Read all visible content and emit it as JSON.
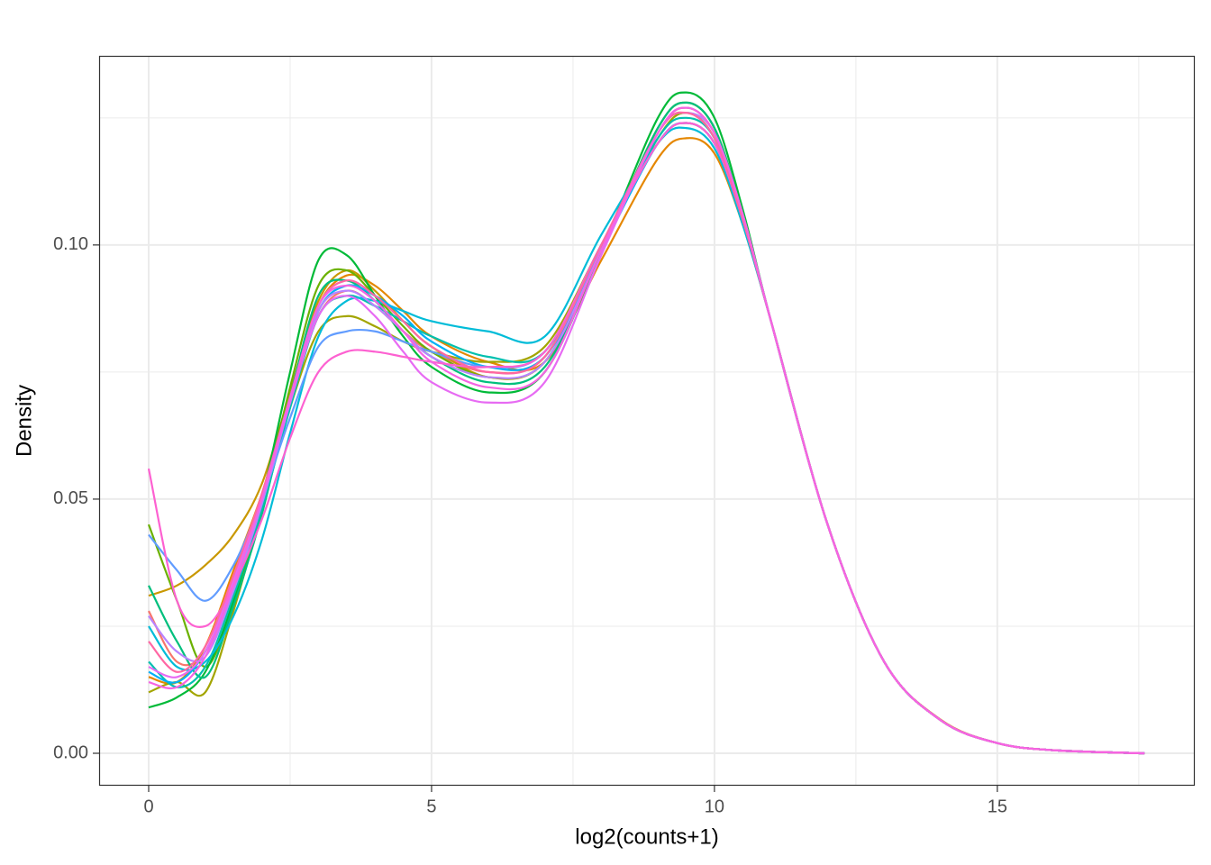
{
  "chart_data": {
    "type": "line",
    "x_label": "log2(counts+1)",
    "y_label": "Density",
    "x": [
      0,
      0.5,
      1,
      1.5,
      2,
      2.5,
      3,
      3.5,
      4,
      4.5,
      5,
      6,
      7,
      8,
      9,
      9.5,
      10,
      10.5,
      11,
      12,
      13,
      14,
      15,
      16,
      17.6
    ],
    "series": [
      {
        "color": "#F8766D",
        "values": [
          0.028,
          0.018,
          0.02,
          0.034,
          0.05,
          0.069,
          0.086,
          0.091,
          0.088,
          0.083,
          0.079,
          0.075,
          0.078,
          0.1,
          0.12,
          0.124,
          0.12,
          0.105,
          0.085,
          0.045,
          0.018,
          0.0065,
          0.002,
          0.0006,
          0
        ]
      },
      {
        "color": "#E58700",
        "values": [
          0.015,
          0.014,
          0.021,
          0.036,
          0.051,
          0.07,
          0.088,
          0.094,
          0.092,
          0.087,
          0.082,
          0.077,
          0.077,
          0.097,
          0.117,
          0.121,
          0.118,
          0.104,
          0.085,
          0.045,
          0.018,
          0.0066,
          0.002,
          0.0006,
          0
        ]
      },
      {
        "color": "#C99800",
        "values": [
          0.031,
          0.033,
          0.037,
          0.043,
          0.053,
          0.071,
          0.089,
          0.095,
          0.091,
          0.085,
          0.08,
          0.074,
          0.077,
          0.099,
          0.122,
          0.127,
          0.122,
          0.106,
          0.085,
          0.045,
          0.018,
          0.0065,
          0.002,
          0.0006,
          0
        ]
      },
      {
        "color": "#A3A500",
        "values": [
          0.012,
          0.014,
          0.012,
          0.028,
          0.048,
          0.068,
          0.083,
          0.086,
          0.084,
          0.081,
          0.079,
          0.077,
          0.08,
          0.1,
          0.121,
          0.126,
          0.121,
          0.105,
          0.085,
          0.045,
          0.018,
          0.0065,
          0.002,
          0.0006,
          0
        ]
      },
      {
        "color": "#6BB100",
        "values": [
          0.045,
          0.03,
          0.017,
          0.03,
          0.049,
          0.072,
          0.092,
          0.095,
          0.09,
          0.084,
          0.079,
          0.074,
          0.077,
          0.099,
          0.123,
          0.128,
          0.123,
          0.106,
          0.085,
          0.045,
          0.018,
          0.0065,
          0.002,
          0.0006,
          0
        ]
      },
      {
        "color": "#00BA38",
        "values": [
          0.009,
          0.011,
          0.016,
          0.03,
          0.05,
          0.075,
          0.097,
          0.098,
          0.09,
          0.082,
          0.076,
          0.071,
          0.075,
          0.099,
          0.125,
          0.13,
          0.125,
          0.107,
          0.085,
          0.045,
          0.018,
          0.0065,
          0.002,
          0.0006,
          0
        ]
      },
      {
        "color": "#00BF7D",
        "values": [
          0.033,
          0.022,
          0.015,
          0.029,
          0.047,
          0.07,
          0.09,
          0.093,
          0.089,
          0.083,
          0.078,
          0.073,
          0.076,
          0.099,
          0.123,
          0.128,
          0.123,
          0.106,
          0.085,
          0.045,
          0.018,
          0.0065,
          0.002,
          0.0006,
          0
        ]
      },
      {
        "color": "#00C0AF",
        "values": [
          0.018,
          0.013,
          0.017,
          0.031,
          0.048,
          0.068,
          0.086,
          0.09,
          0.088,
          0.085,
          0.082,
          0.078,
          0.079,
          0.1,
          0.121,
          0.125,
          0.121,
          0.105,
          0.085,
          0.045,
          0.018,
          0.0065,
          0.002,
          0.0006,
          0
        ]
      },
      {
        "color": "#00BCD8",
        "values": [
          0.025,
          0.017,
          0.018,
          0.027,
          0.042,
          0.063,
          0.082,
          0.089,
          0.089,
          0.087,
          0.085,
          0.083,
          0.082,
          0.102,
          0.12,
          0.123,
          0.119,
          0.104,
          0.085,
          0.045,
          0.018,
          0.0065,
          0.002,
          0.0006,
          0
        ]
      },
      {
        "color": "#00B0F6",
        "values": [
          0.016,
          0.014,
          0.02,
          0.033,
          0.049,
          0.069,
          0.087,
          0.092,
          0.09,
          0.086,
          0.081,
          0.076,
          0.078,
          0.099,
          0.12,
          0.124,
          0.12,
          0.105,
          0.085,
          0.045,
          0.018,
          0.0065,
          0.002,
          0.0006,
          0
        ]
      },
      {
        "color": "#619CFF",
        "values": [
          0.043,
          0.036,
          0.03,
          0.037,
          0.05,
          0.066,
          0.08,
          0.083,
          0.083,
          0.081,
          0.079,
          0.076,
          0.079,
          0.1,
          0.12,
          0.124,
          0.12,
          0.105,
          0.085,
          0.045,
          0.018,
          0.0065,
          0.002,
          0.0006,
          0
        ]
      },
      {
        "color": "#B983FF",
        "values": [
          0.027,
          0.02,
          0.019,
          0.032,
          0.049,
          0.069,
          0.087,
          0.091,
          0.088,
          0.083,
          0.078,
          0.074,
          0.077,
          0.099,
          0.122,
          0.126,
          0.122,
          0.106,
          0.085,
          0.045,
          0.018,
          0.0065,
          0.002,
          0.0006,
          0
        ]
      },
      {
        "color": "#E76BF3",
        "values": [
          0.017,
          0.015,
          0.02,
          0.034,
          0.05,
          0.069,
          0.086,
          0.09,
          0.086,
          0.079,
          0.073,
          0.069,
          0.073,
          0.098,
          0.122,
          0.127,
          0.122,
          0.106,
          0.085,
          0.045,
          0.018,
          0.0065,
          0.002,
          0.0006,
          0
        ]
      },
      {
        "color": "#FD61D1",
        "values": [
          0.056,
          0.03,
          0.025,
          0.033,
          0.046,
          0.062,
          0.075,
          0.079,
          0.079,
          0.078,
          0.077,
          0.076,
          0.079,
          0.1,
          0.12,
          0.124,
          0.12,
          0.105,
          0.085,
          0.045,
          0.018,
          0.0065,
          0.002,
          0.0006,
          0
        ]
      },
      {
        "color": "#FF67A4",
        "values": [
          0.022,
          0.016,
          0.021,
          0.035,
          0.051,
          0.07,
          0.088,
          0.093,
          0.09,
          0.085,
          0.08,
          0.075,
          0.078,
          0.1,
          0.122,
          0.126,
          0.121,
          0.105,
          0.085,
          0.045,
          0.018,
          0.0065,
          0.002,
          0.0006,
          0
        ]
      },
      {
        "color": "#F564E3",
        "values": [
          0.014,
          0.013,
          0.019,
          0.033,
          0.05,
          0.07,
          0.088,
          0.092,
          0.089,
          0.083,
          0.077,
          0.072,
          0.075,
          0.099,
          0.122,
          0.127,
          0.122,
          0.106,
          0.085,
          0.045,
          0.018,
          0.0065,
          0.002,
          0.0006,
          0
        ]
      }
    ],
    "xlim": [
      -0.876,
      18.49
    ],
    "ylim": [
      -0.00638,
      0.1372
    ],
    "xticks": [
      0,
      5,
      10,
      15
    ],
    "yticks": [
      {
        "value": 0,
        "label": "0.00"
      },
      {
        "value": 0.05,
        "label": "0.05"
      },
      {
        "value": 0.1,
        "label": "0.10"
      }
    ],
    "xminor": [
      2.5,
      7.5,
      12.5,
      17.5
    ],
    "yminor": [
      0.025,
      0.075,
      0.125
    ],
    "grid": true
  }
}
